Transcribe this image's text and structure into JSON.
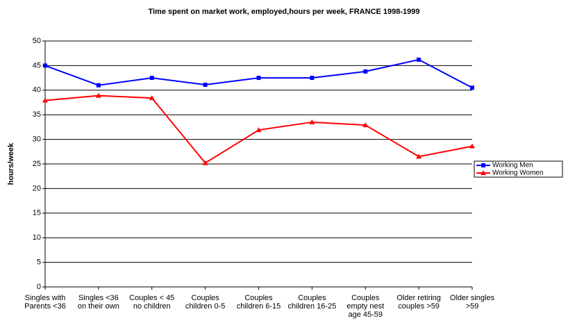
{
  "chart_data": {
    "type": "line",
    "title": "Time spent on market work, employed,hours per week, FRANCE 1998-1999",
    "y_label": "hours/week",
    "categories": [
      "Singles with\nParents <36",
      "Singles  <36\non their own",
      "Couples < 45\nno children",
      "Couples\nchildren 0-5",
      "Couples\nchildren 6-15",
      "Couples\nchildren 16-25",
      "Couples\nempty nest\nage 45-59",
      "Older retiring\ncouples >59",
      "Older singles\n>59"
    ],
    "series": [
      {
        "name": "Working Men",
        "color": "#0000ff",
        "marker": "square",
        "values": [
          45.0,
          41.0,
          42.5,
          41.1,
          42.5,
          42.5,
          43.8,
          46.2,
          40.5
        ]
      },
      {
        "name": "Working Women",
        "color": "#ff0000",
        "marker": "triangle",
        "values": [
          37.9,
          38.9,
          38.4,
          25.2,
          31.9,
          33.5,
          32.9,
          26.5,
          28.6
        ]
      }
    ],
    "ylim": [
      0,
      50
    ],
    "yticks": [
      0,
      5,
      10,
      15,
      20,
      25,
      30,
      35,
      40,
      45,
      50
    ],
    "grid": true,
    "legend": "right"
  }
}
